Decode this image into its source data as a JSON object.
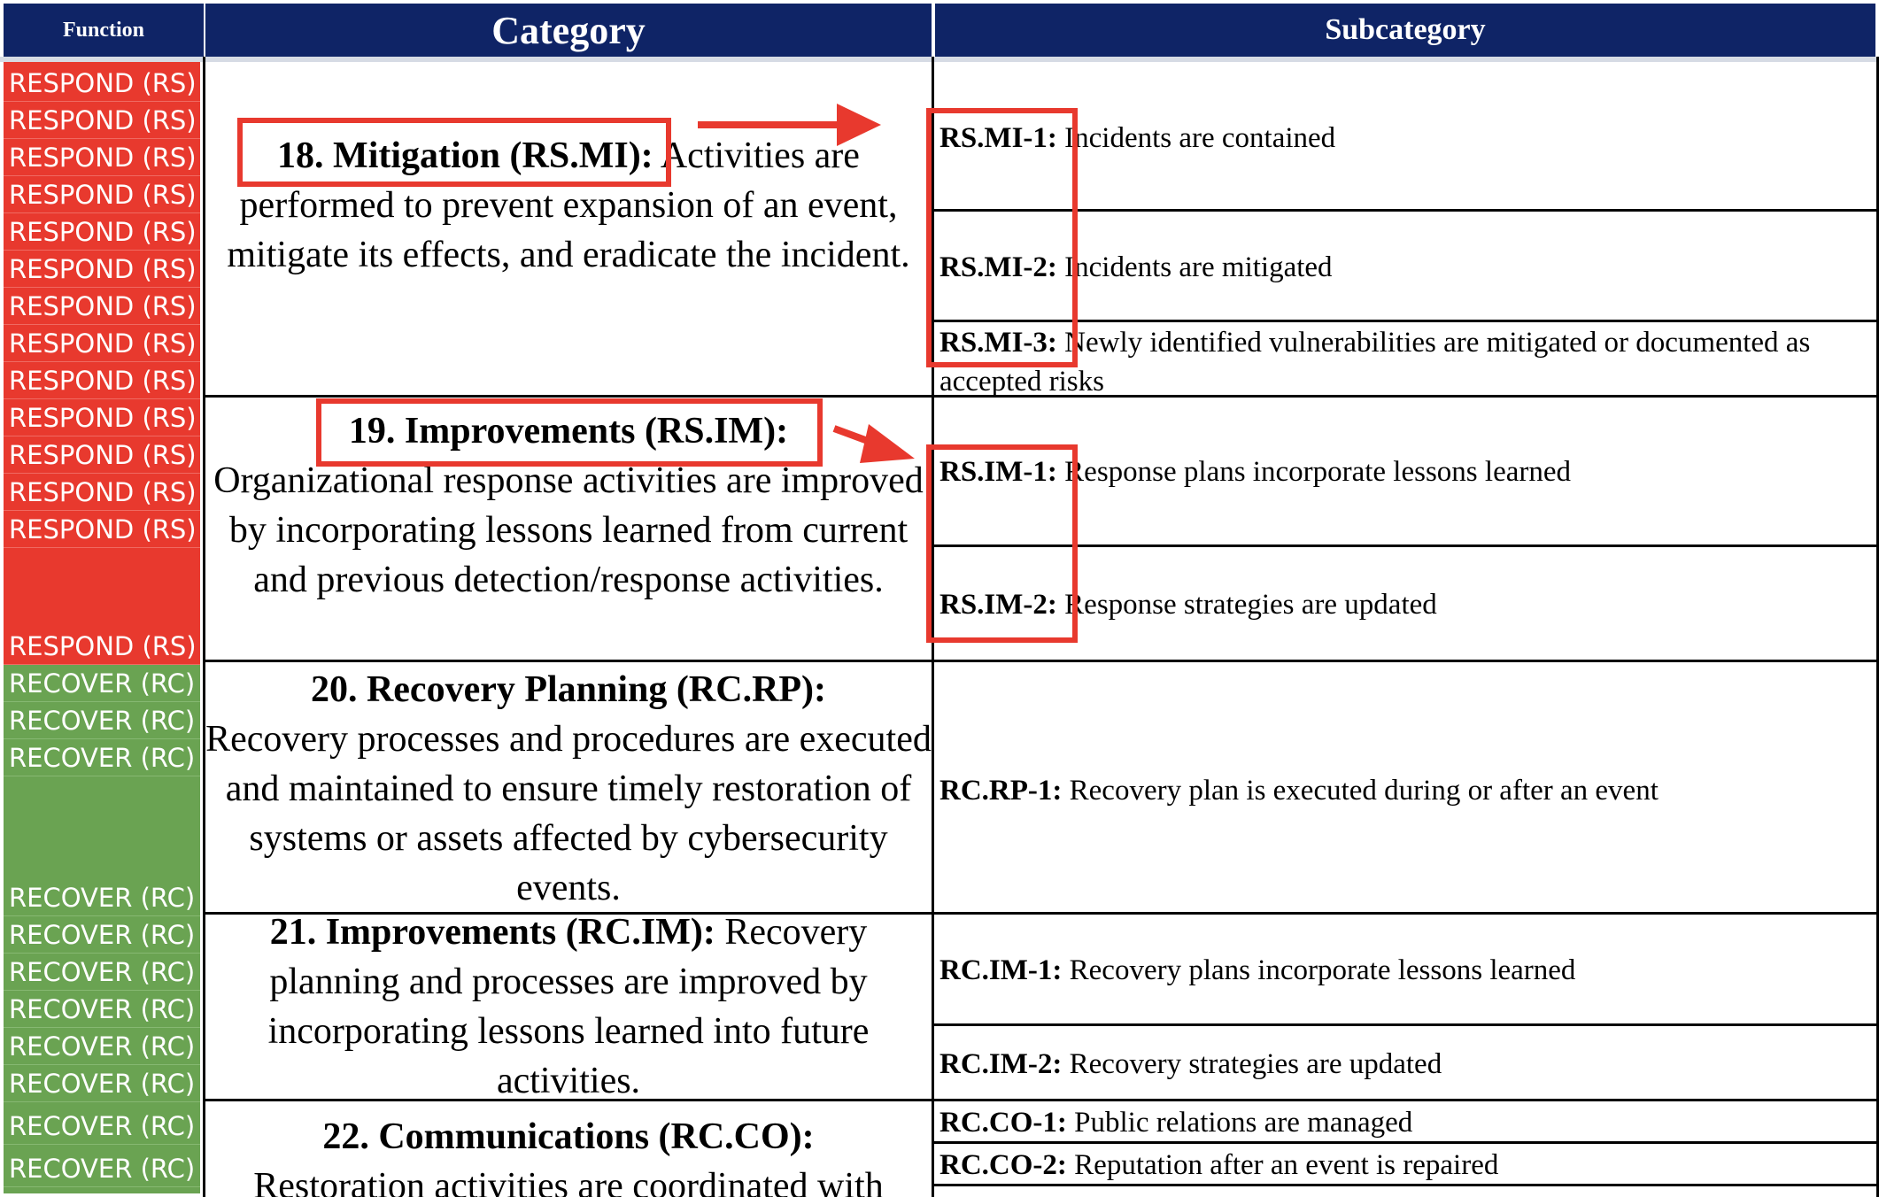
{
  "header": {
    "function": "Function",
    "category": "Category",
    "subcategory": "Subcategory"
  },
  "function_labels": {
    "respond": "RESPOND (RS)",
    "recover": "RECOVER (RC)"
  },
  "categories": {
    "mi": {
      "title": "18. Mitigation (RS.MI):",
      "text": " Activities are performed to prevent expansion of an event, mitigate its effects, and eradicate the incident."
    },
    "im": {
      "title": "19. Improvements (RS.IM):",
      "text": "Organizational response activities are improved by incorporating lessons learned from current and previous detection/response activities."
    },
    "rp": {
      "title": "20. Recovery Planning (RC.RP):",
      "text": "Recovery processes and procedures are executed and maintained to ensure timely restoration of systems or assets affected by cybersecurity events."
    },
    "rcim": {
      "title": "21. Improvements (RC.IM):",
      "text": " Recovery planning and processes are improved by incorporating lessons learned into future activities."
    },
    "co": {
      "title": "22. Communications (RC.CO):",
      "text": "Restoration activities are coordinated with"
    }
  },
  "subcategories": {
    "mi1": {
      "id": "RS.MI-1:",
      "text": " Incidents are contained"
    },
    "mi2": {
      "id": "RS.MI-2:",
      "text": " Incidents are mitigated"
    },
    "mi3": {
      "id": "RS.MI-3:",
      "text": " Newly identified vulnerabilities are mitigated or documented as accepted risks"
    },
    "im1": {
      "id": "RS.IM-1:",
      "text": " Response plans incorporate lessons learned"
    },
    "im2": {
      "id": "RS.IM-2:",
      "text": " Response strategies are updated"
    },
    "rp1": {
      "id": "RC.RP-1:",
      "text": " Recovery plan is executed during or after an event"
    },
    "rcim1": {
      "id": "RC.IM-1:",
      "text": " Recovery plans incorporate lessons learned"
    },
    "rcim2": {
      "id": "RC.IM-2:",
      "text": " Recovery strategies are updated"
    },
    "co1": {
      "id": "RC.CO-1:",
      "text": " Public relations are managed"
    },
    "co2": {
      "id": "RC.CO-2:",
      "text": " Reputation after an event is repaired"
    }
  },
  "colors": {
    "header": "#0f2466",
    "respond": "#e8392e",
    "recover": "#6aa352",
    "annotation": "#e8392e"
  }
}
